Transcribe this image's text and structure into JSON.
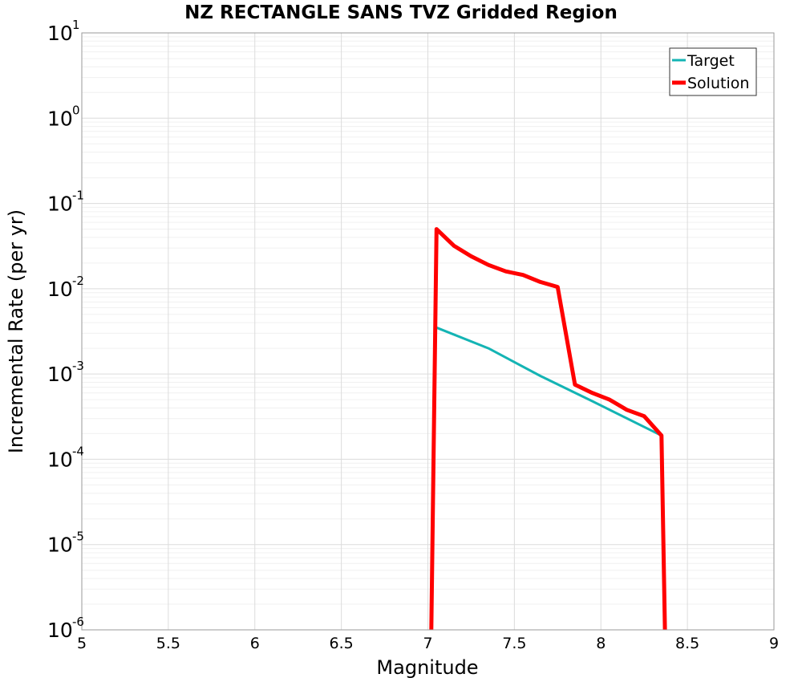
{
  "chart_data": {
    "type": "line",
    "title": "NZ RECTANGLE SANS TVZ Gridded Region",
    "xlabel": "Magnitude",
    "ylabel": "Incremental Rate (per yr)",
    "xlim": [
      5,
      9
    ],
    "ylim": [
      1e-06,
      10
    ],
    "yscale": "log",
    "grid": true,
    "legend_position": "top-right",
    "x_ticks": [
      "5",
      "5.5",
      "6",
      "6.5",
      "7",
      "7.5",
      "8",
      "8.5",
      "9"
    ],
    "y_ticks": [
      {
        "base": "10",
        "exp": "1"
      },
      {
        "base": "10",
        "exp": "0"
      },
      {
        "base": "10",
        "exp": "-1"
      },
      {
        "base": "10",
        "exp": "-2"
      },
      {
        "base": "10",
        "exp": "-3"
      },
      {
        "base": "10",
        "exp": "-4"
      },
      {
        "base": "10",
        "exp": "-5"
      },
      {
        "base": "10",
        "exp": "-6"
      }
    ],
    "series": [
      {
        "name": "Target",
        "color": "#14b4b4",
        "x": [
          7.05,
          7.35,
          7.65,
          7.95,
          8.35
        ],
        "y": [
          0.0035,
          0.002,
          0.00095,
          0.00048,
          0.00019
        ]
      },
      {
        "name": "Solution",
        "color": "#ff0000",
        "x": [
          7.02,
          7.05,
          7.15,
          7.25,
          7.35,
          7.45,
          7.55,
          7.65,
          7.75,
          7.85,
          7.95,
          8.05,
          8.15,
          8.25,
          8.35,
          8.37
        ],
        "y": [
          1e-06,
          0.05,
          0.032,
          0.024,
          0.019,
          0.016,
          0.0145,
          0.012,
          0.0105,
          0.00075,
          0.0006,
          0.0005,
          0.00038,
          0.00032,
          0.00019,
          1e-06
        ]
      }
    ]
  }
}
